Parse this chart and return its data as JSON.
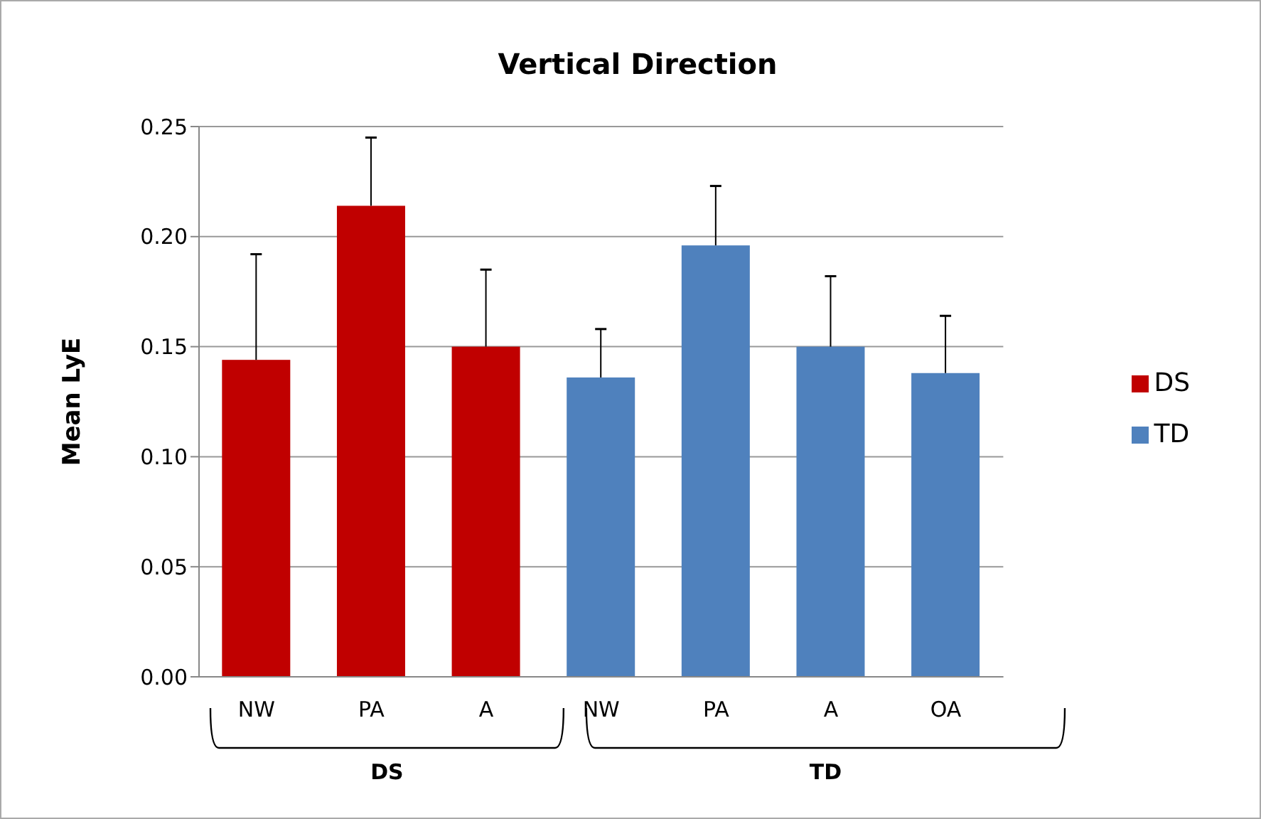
{
  "chart_data": {
    "type": "bar",
    "title": "Vertical Direction",
    "ylabel": "Mean LyE",
    "categories": [
      "NW",
      "PA",
      "A",
      "NW",
      "PA",
      "A",
      "OA"
    ],
    "series": [
      {
        "name": "DS",
        "color": "#c00000",
        "values": [
          0.144,
          0.214,
          0.15,
          null,
          null,
          null,
          null
        ],
        "errors": [
          [
            0.144,
            0.192
          ],
          [
            0.214,
            0.245
          ],
          [
            0.15,
            0.185
          ],
          null,
          null,
          null,
          null
        ]
      },
      {
        "name": "TD",
        "color": "#4f81bd",
        "values": [
          null,
          null,
          null,
          0.136,
          0.196,
          0.15,
          0.138
        ],
        "errors": [
          null,
          null,
          null,
          [
            0.136,
            0.158
          ],
          [
            0.196,
            0.223
          ],
          [
            0.15,
            0.182
          ],
          [
            0.138,
            0.164
          ]
        ]
      }
    ],
    "annotations": [
      "DS",
      "TD"
    ],
    "ylim": [
      0,
      0.25
    ],
    "yticks": [
      {
        "value": 0,
        "label": "0.00"
      },
      0.05,
      {
        "value": 0.1,
        "label": "0.10"
      },
      0.15,
      {
        "value": 0.2,
        "label": "0.20"
      },
      0.25
    ],
    "grid": "y",
    "legend": "right"
  }
}
